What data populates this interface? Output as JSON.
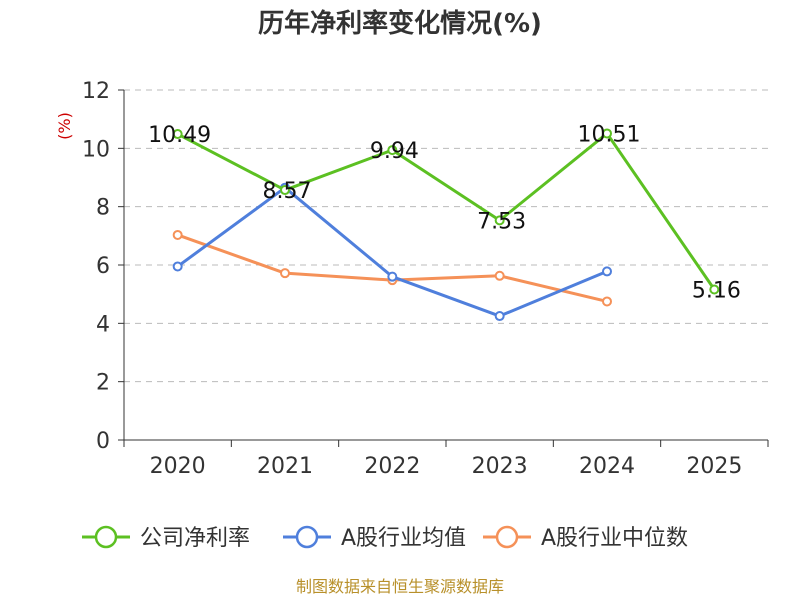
{
  "chart_data": {
    "type": "line",
    "title": "历年净利率变化情况(%)",
    "ylabel": "(%)",
    "xlabel": "",
    "categories": [
      "2020",
      "2021",
      "2022",
      "2023",
      "2024",
      "2025"
    ],
    "ylim": [
      0,
      12
    ],
    "yticks": [
      0,
      2,
      4,
      6,
      8,
      10,
      12
    ],
    "grid": true,
    "legend_position": "bottom",
    "series": [
      {
        "name": "公司净利率",
        "color": "#5cc022",
        "values": [
          10.49,
          8.57,
          9.94,
          7.53,
          10.51,
          5.16
        ],
        "labels": [
          "10.49",
          "8.57",
          "9.94",
          "7.53",
          "10.51",
          "5.16"
        ]
      },
      {
        "name": "A股行业均值",
        "color": "#4f7fdc",
        "values": [
          5.95,
          8.65,
          5.6,
          4.25,
          5.78,
          null
        ]
      },
      {
        "name": "A股行业中位数",
        "color": "#f59158",
        "values": [
          7.03,
          5.72,
          5.48,
          5.63,
          4.75,
          null
        ]
      }
    ],
    "source": "制图数据来自恒生聚源数据库"
  }
}
